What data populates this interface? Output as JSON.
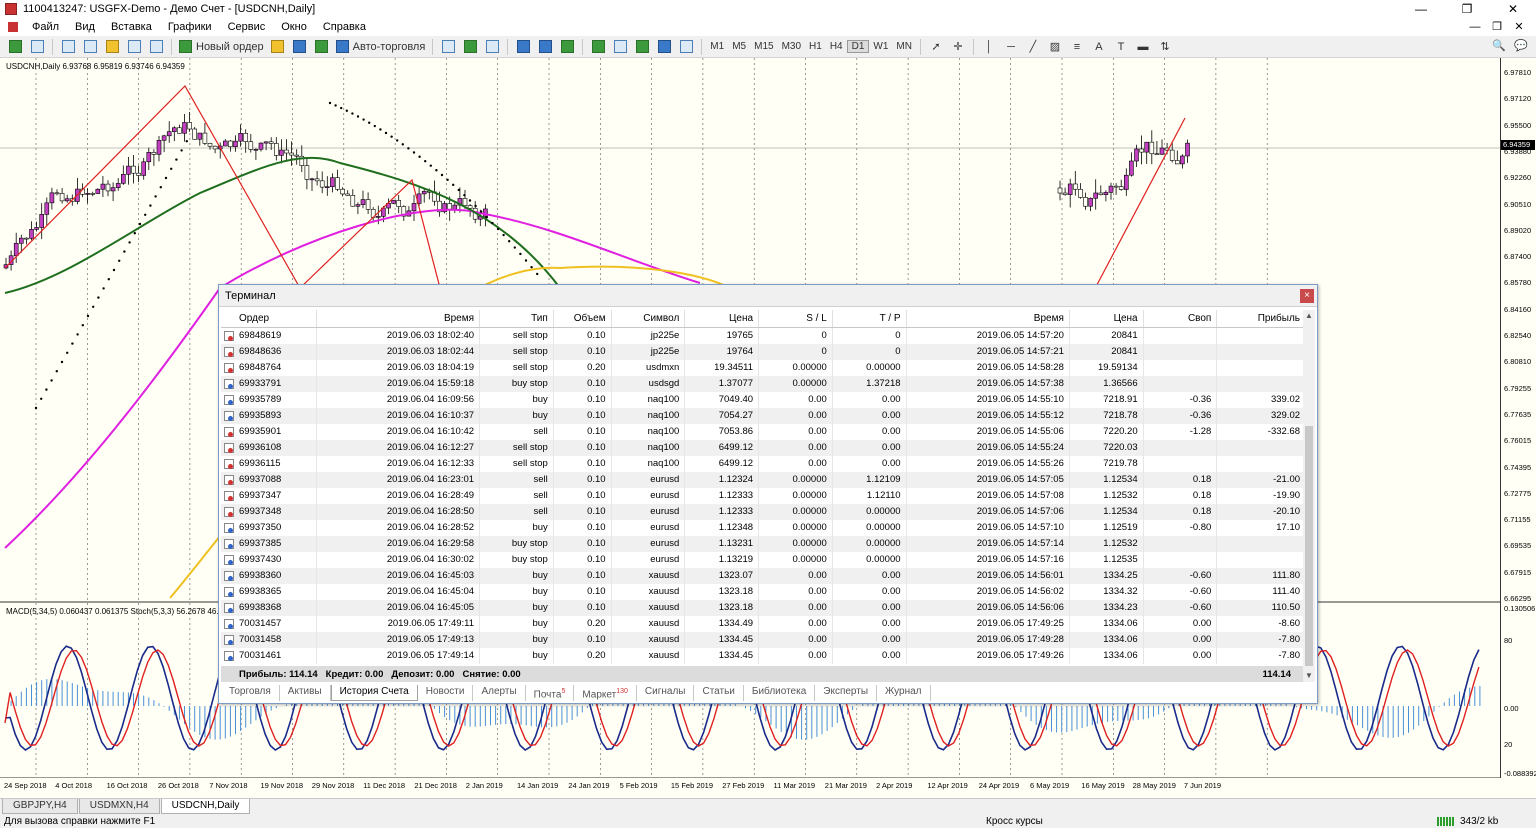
{
  "window": {
    "title": "1100413247: USGFX-Demo - Демо Счет - [USDCNH,Daily]",
    "buttons": [
      "—",
      "❐",
      "✕"
    ]
  },
  "menu": {
    "items": [
      "Файл",
      "Вид",
      "Вставка",
      "Графики",
      "Сервис",
      "Окно",
      "Справка"
    ],
    "mdi_buttons": [
      "—",
      "❐",
      "✕"
    ]
  },
  "toolbar": {
    "new_order": "Новый ордер",
    "autotrade": "Авто-торговля",
    "timeframes": [
      "M1",
      "M5",
      "M15",
      "M30",
      "H1",
      "H4",
      "D1",
      "W1",
      "MN"
    ]
  },
  "chart": {
    "symbol_info": "USDCNH,Daily  6.93768 6.95819 6.93746 6.94359",
    "indicator_info": "MACD(5,34,5) 0.060437 0.061375  Stoch(5,3,3) 56.2678 46.346",
    "current_price": "6.94359",
    "price_labels": [
      "6.97810",
      "6.97120",
      "6.95500",
      "6.93880",
      "6.92260",
      "6.90510",
      "6.89020",
      "6.87400",
      "6.85780",
      "6.84160",
      "6.82540",
      "6.80810",
      "6.79255",
      "6.77635",
      "6.76015",
      "6.74395",
      "6.72775",
      "6.71155",
      "6.69535",
      "6.67915",
      "6.66295"
    ],
    "macd_labels": [
      "0.130506",
      "80",
      "0.00",
      "20",
      "-0.088392"
    ],
    "dates": [
      "24 Sep 2018",
      "4 Oct 2018",
      "16 Oct 2018",
      "26 Oct 2018",
      "7 Nov 2018",
      "19 Nov 2018",
      "29 Nov 2018",
      "11 Dec 2018",
      "21 Dec 2018",
      "2 Jan 2019",
      "14 Jan 2019",
      "24 Jan 2019",
      "5 Feb 2019",
      "15 Feb 2019",
      "27 Feb 2019",
      "11 Mar 2019",
      "21 Mar 2019",
      "2 Apr 2019",
      "12 Apr 2019",
      "24 Apr 2019",
      "6 May 2019",
      "16 May 2019",
      "28 May 2019",
      "7 Jun 2019"
    ]
  },
  "terminal": {
    "title": "Терминал",
    "close": "×",
    "columns": [
      "Ордер",
      "Время",
      "Тип",
      "Объем",
      "Символ",
      "Цена",
      "S / L",
      "T / P",
      "Время",
      "Цена",
      "Своп",
      "Прибыль"
    ],
    "rows": [
      {
        "icon": "red",
        "cells": [
          "69848619",
          "2019.06.03 18:02:40",
          "sell stop",
          "0.10",
          "jp225e",
          "19765",
          "0",
          "0",
          "2019.06.05 14:57:20",
          "20841",
          "",
          ""
        ]
      },
      {
        "icon": "red",
        "cells": [
          "69848636",
          "2019.06.03 18:02:44",
          "sell stop",
          "0.10",
          "jp225e",
          "19764",
          "0",
          "0",
          "2019.06.05 14:57:21",
          "20841",
          "",
          ""
        ]
      },
      {
        "icon": "red",
        "cells": [
          "69848764",
          "2019.06.03 18:04:19",
          "sell stop",
          "0.20",
          "usdmxn",
          "19.34511",
          "0.00000",
          "0.00000",
          "2019.06.05 14:58:28",
          "19.59134",
          "",
          ""
        ]
      },
      {
        "icon": "blue",
        "cells": [
          "69933791",
          "2019.06.04 15:59:18",
          "buy stop",
          "0.10",
          "usdsgd",
          "1.37077",
          "0.00000",
          "1.37218",
          "2019.06.05 14:57:38",
          "1.36566",
          "",
          ""
        ]
      },
      {
        "icon": "blue",
        "cells": [
          "69935789",
          "2019.06.04 16:09:56",
          "buy",
          "0.10",
          "naq100",
          "7049.40",
          "0.00",
          "0.00",
          "2019.06.05 14:55:10",
          "7218.91",
          "-0.36",
          "339.02"
        ]
      },
      {
        "icon": "blue",
        "cells": [
          "69935893",
          "2019.06.04 16:10:37",
          "buy",
          "0.10",
          "naq100",
          "7054.27",
          "0.00",
          "0.00",
          "2019.06.05 14:55:12",
          "7218.78",
          "-0.36",
          "329.02"
        ]
      },
      {
        "icon": "red",
        "cells": [
          "69935901",
          "2019.06.04 16:10:42",
          "sell",
          "0.10",
          "naq100",
          "7053.86",
          "0.00",
          "0.00",
          "2019.06.05 14:55:06",
          "7220.20",
          "-1.28",
          "-332.68"
        ]
      },
      {
        "icon": "red",
        "cells": [
          "69936108",
          "2019.06.04 16:12:27",
          "sell stop",
          "0.10",
          "naq100",
          "6499.12",
          "0.00",
          "0.00",
          "2019.06.05 14:55:24",
          "7220.03",
          "",
          ""
        ]
      },
      {
        "icon": "red",
        "cells": [
          "69936115",
          "2019.06.04 16:12:33",
          "sell stop",
          "0.10",
          "naq100",
          "6499.12",
          "0.00",
          "0.00",
          "2019.06.05 14:55:26",
          "7219.78",
          "",
          ""
        ]
      },
      {
        "icon": "red",
        "cells": [
          "69937088",
          "2019.06.04 16:23:01",
          "sell",
          "0.10",
          "eurusd",
          "1.12324",
          "0.00000",
          "1.12109",
          "2019.06.05 14:57:05",
          "1.12534",
          "0.18",
          "-21.00"
        ]
      },
      {
        "icon": "red",
        "cells": [
          "69937347",
          "2019.06.04 16:28:49",
          "sell",
          "0.10",
          "eurusd",
          "1.12333",
          "0.00000",
          "1.12110",
          "2019.06.05 14:57:08",
          "1.12532",
          "0.18",
          "-19.90"
        ]
      },
      {
        "icon": "red",
        "cells": [
          "69937348",
          "2019.06.04 16:28:50",
          "sell",
          "0.10",
          "eurusd",
          "1.12333",
          "0.00000",
          "0.00000",
          "2019.06.05 14:57:06",
          "1.12534",
          "0.18",
          "-20.10"
        ]
      },
      {
        "icon": "blue",
        "cells": [
          "69937350",
          "2019.06.04 16:28:52",
          "buy",
          "0.10",
          "eurusd",
          "1.12348",
          "0.00000",
          "0.00000",
          "2019.06.05 14:57:10",
          "1.12519",
          "-0.80",
          "17.10"
        ]
      },
      {
        "icon": "blue",
        "cells": [
          "69937385",
          "2019.06.04 16:29:58",
          "buy stop",
          "0.10",
          "eurusd",
          "1.13231",
          "0.00000",
          "0.00000",
          "2019.06.05 14:57:14",
          "1.12532",
          "",
          ""
        ]
      },
      {
        "icon": "blue",
        "cells": [
          "69937430",
          "2019.06.04 16:30:02",
          "buy stop",
          "0.10",
          "eurusd",
          "1.13219",
          "0.00000",
          "0.00000",
          "2019.06.05 14:57:16",
          "1.12535",
          "",
          ""
        ]
      },
      {
        "icon": "blue",
        "cells": [
          "69938360",
          "2019.06.04 16:45:03",
          "buy",
          "0.10",
          "xauusd",
          "1323.07",
          "0.00",
          "0.00",
          "2019.06.05 14:56:01",
          "1334.25",
          "-0.60",
          "111.80"
        ]
      },
      {
        "icon": "blue",
        "cells": [
          "69938365",
          "2019.06.04 16:45:04",
          "buy",
          "0.10",
          "xauusd",
          "1323.18",
          "0.00",
          "0.00",
          "2019.06.05 14:56:02",
          "1334.32",
          "-0.60",
          "111.40"
        ]
      },
      {
        "icon": "blue",
        "cells": [
          "69938368",
          "2019.06.04 16:45:05",
          "buy",
          "0.10",
          "xauusd",
          "1323.18",
          "0.00",
          "0.00",
          "2019.06.05 14:56:06",
          "1334.23",
          "-0.60",
          "110.50"
        ]
      },
      {
        "icon": "blue",
        "cells": [
          "70031457",
          "2019.06.05 17:49:11",
          "buy",
          "0.20",
          "xauusd",
          "1334.49",
          "0.00",
          "0.00",
          "2019.06.05 17:49:25",
          "1334.06",
          "0.00",
          "-8.60"
        ]
      },
      {
        "icon": "blue",
        "cells": [
          "70031458",
          "2019.06.05 17:49:13",
          "buy",
          "0.10",
          "xauusd",
          "1334.45",
          "0.00",
          "0.00",
          "2019.06.05 17:49:28",
          "1334.06",
          "0.00",
          "-7.80"
        ]
      },
      {
        "icon": "blue",
        "cells": [
          "70031461",
          "2019.06.05 17:49:14",
          "buy",
          "0.20",
          "xauusd",
          "1334.45",
          "0.00",
          "0.00",
          "2019.06.05 17:49:26",
          "1334.06",
          "0.00",
          "-7.80"
        ]
      }
    ],
    "summary": {
      "profit": "Прибыль: 114.14",
      "credit": "Кредит: 0.00",
      "deposit": "Депозит: 0.00",
      "withdrawal": "Снятие: 0.00",
      "total": "114.14"
    },
    "tabs": [
      "Торговля",
      "Активы",
      "История Счета",
      "Новости",
      "Алерты",
      "Почта",
      "Маркет",
      "Сигналы",
      "Статьи",
      "Библиотека",
      "Эксперты",
      "Журнал"
    ],
    "tab_badges": {
      "mail": "5",
      "market": "130"
    },
    "active_tab": "История Счета"
  },
  "chart_tabs": [
    "GBPJPY,H4",
    "USDMXN,H4",
    "USDCNH,Daily"
  ],
  "status": {
    "help": "Для вызова справки нажмите F1",
    "profile": "Кросс курсы",
    "traffic": "343/2 kb"
  }
}
